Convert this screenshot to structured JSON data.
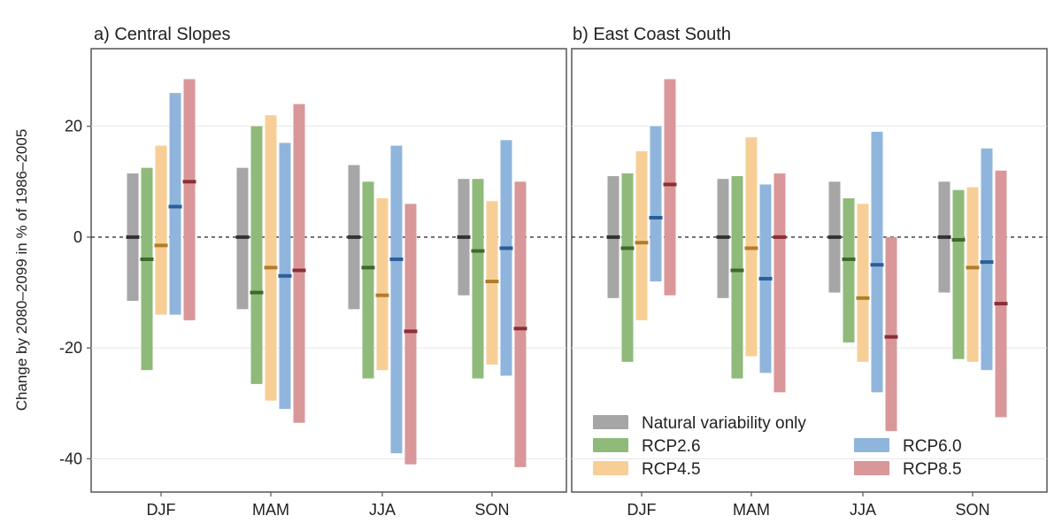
{
  "figure": {
    "ylabel": "Change by 2080–2099 in % of 1986–2005"
  },
  "legend": [
    {
      "key": "natural",
      "label": "Natural variability only"
    },
    {
      "key": "rcp26",
      "label": "RCP2.6"
    },
    {
      "key": "rcp45",
      "label": "RCP4.5"
    },
    {
      "key": "rcp60",
      "label": "RCP6.0"
    },
    {
      "key": "rcp85",
      "label": "RCP8.5"
    }
  ],
  "colors": {
    "natural": {
      "bar": "#a6a6a6",
      "median": "#333333"
    },
    "rcp26": {
      "bar": "#8fba7a",
      "median": "#3d6a2c"
    },
    "rcp45": {
      "bar": "#f7cf96",
      "median": "#b07d2c"
    },
    "rcp60": {
      "bar": "#8fb5dc",
      "median": "#2b5e96"
    },
    "rcp85": {
      "bar": "#d99799",
      "median": "#8a2f35"
    }
  },
  "chart_data": [
    {
      "type": "bar",
      "title": "a) Central Slopes",
      "categories": [
        "DJF",
        "MAM",
        "JJA",
        "SON"
      ],
      "ylim": [
        -46,
        34
      ],
      "yticks": [
        -40,
        -20,
        0,
        20
      ],
      "reference_line": 0,
      "grid": true,
      "series": [
        {
          "key": "natural",
          "name": "Natural variability only",
          "low": [
            -11.5,
            -13,
            -13,
            -10.5
          ],
          "high": [
            11.5,
            12.5,
            13,
            10.5
          ],
          "median": [
            0,
            0,
            0,
            0
          ]
        },
        {
          "key": "rcp26",
          "name": "RCP2.6",
          "low": [
            -24,
            -26.5,
            -25.5,
            -25.5
          ],
          "high": [
            12.5,
            20,
            10,
            10.5
          ],
          "median": [
            -4,
            -10,
            -5.5,
            -2.5
          ]
        },
        {
          "key": "rcp45",
          "name": "RCP4.5",
          "low": [
            -14,
            -29.5,
            -24,
            -23
          ],
          "high": [
            16.5,
            22,
            7,
            6.5
          ],
          "median": [
            -1.5,
            -5.5,
            -10.5,
            -8
          ]
        },
        {
          "key": "rcp60",
          "name": "RCP6.0",
          "low": [
            -14,
            -31,
            -39,
            -25
          ],
          "high": [
            26,
            17,
            16.5,
            17.5
          ],
          "median": [
            5.5,
            -7,
            -4,
            -2
          ]
        },
        {
          "key": "rcp85",
          "name": "RCP8.5",
          "low": [
            -15,
            -33.5,
            -41,
            -41.5
          ],
          "high": [
            28.5,
            24,
            6,
            10
          ],
          "median": [
            10,
            -6,
            -17,
            -16.5
          ]
        }
      ]
    },
    {
      "type": "bar",
      "title": "b) East Coast South",
      "categories": [
        "DJF",
        "MAM",
        "JJA",
        "SON"
      ],
      "ylim": [
        -46,
        34
      ],
      "yticks": [
        -40,
        -20,
        0,
        20
      ],
      "reference_line": 0,
      "grid": true,
      "legend_position": "bottom-right",
      "series": [
        {
          "key": "natural",
          "name": "Natural variability only",
          "low": [
            -11,
            -11,
            -10,
            -10
          ],
          "high": [
            11,
            10.5,
            10,
            10
          ],
          "median": [
            0,
            0,
            0,
            0
          ]
        },
        {
          "key": "rcp26",
          "name": "RCP2.6",
          "low": [
            -22.5,
            -25.5,
            -19,
            -22
          ],
          "high": [
            11.5,
            11,
            7,
            8.5
          ],
          "median": [
            -2,
            -6,
            -4,
            -0.5
          ]
        },
        {
          "key": "rcp45",
          "name": "RCP4.5",
          "low": [
            -15,
            -21.5,
            -22.5,
            -22.5
          ],
          "high": [
            15.5,
            18,
            6,
            9
          ],
          "median": [
            -1,
            -2,
            -11,
            -5.5
          ]
        },
        {
          "key": "rcp60",
          "name": "RCP6.0",
          "low": [
            -8,
            -24.5,
            -28,
            -24
          ],
          "high": [
            20,
            9.5,
            19,
            16
          ],
          "median": [
            3.5,
            -7.5,
            -5,
            -4.5
          ]
        },
        {
          "key": "rcp85",
          "name": "RCP8.5",
          "low": [
            -10.5,
            -28,
            -35,
            -32.5
          ],
          "high": [
            28.5,
            11.5,
            0,
            12
          ],
          "median": [
            9.5,
            0,
            -18,
            -12
          ]
        }
      ]
    }
  ]
}
